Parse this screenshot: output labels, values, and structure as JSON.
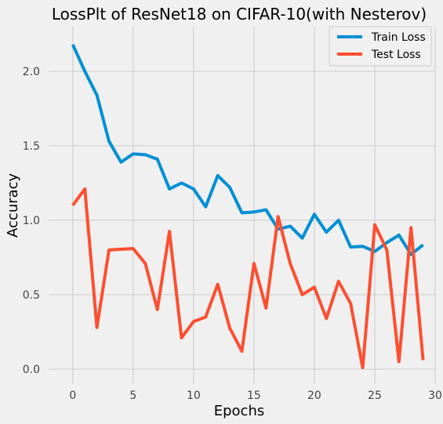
{
  "chart_data": {
    "type": "line",
    "title": "LossPlt of ResNet18 on CIFAR-10(with Nesterov)",
    "xlabel": "Epochs",
    "ylabel": "Accuracy",
    "xlim": [
      -2,
      30
    ],
    "ylim": [
      -0.1,
      2.3
    ],
    "xticks": [
      0,
      5,
      10,
      15,
      20,
      25,
      30
    ],
    "xtick_labels": [
      "0",
      "5",
      "10",
      "15",
      "20",
      "25",
      "30"
    ],
    "yticks": [
      0.0,
      0.5,
      1.0,
      1.5,
      2.0
    ],
    "ytick_labels": [
      "0.0",
      "0.5",
      "1.0",
      "1.5",
      "2.0"
    ],
    "grid": true,
    "legend_position": "top-right",
    "x": [
      0,
      1,
      2,
      3,
      4,
      5,
      6,
      7,
      8,
      9,
      10,
      11,
      12,
      13,
      14,
      15,
      16,
      17,
      18,
      19,
      20,
      21,
      22,
      23,
      24,
      25,
      26,
      27,
      28,
      29
    ],
    "series": [
      {
        "name": "Train Loss",
        "color": "#008fd5",
        "values": [
          2.18,
          2.0,
          1.84,
          1.53,
          1.39,
          1.445,
          1.44,
          1.41,
          1.21,
          1.25,
          1.21,
          1.09,
          1.3,
          1.22,
          1.05,
          1.055,
          1.07,
          0.94,
          0.96,
          0.88,
          1.04,
          0.92,
          1.0,
          0.82,
          0.825,
          0.79,
          0.85,
          0.9,
          0.77,
          0.835
        ]
      },
      {
        "name": "Test Loss",
        "color": "#fc4f30",
        "values": [
          1.1,
          1.21,
          0.28,
          0.8,
          0.805,
          0.81,
          0.71,
          0.4,
          0.925,
          0.21,
          0.32,
          0.35,
          0.57,
          0.275,
          0.12,
          0.71,
          0.41,
          1.025,
          0.71,
          0.5,
          0.55,
          0.34,
          0.59,
          0.44,
          0.01,
          0.97,
          0.8,
          0.05,
          0.95,
          0.06
        ]
      }
    ]
  }
}
